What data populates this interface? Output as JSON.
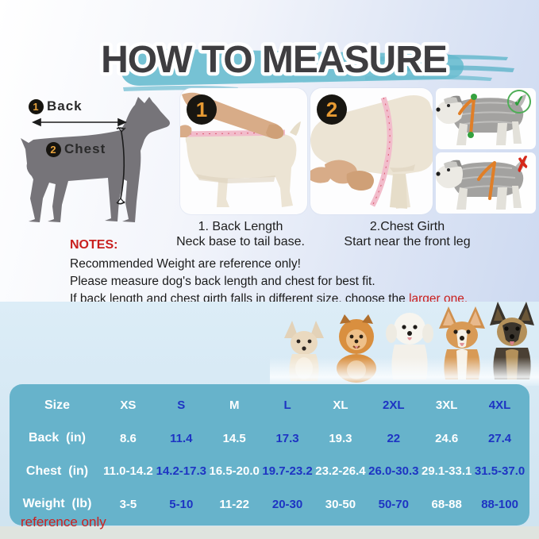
{
  "title": "HOW TO MEASURE",
  "diagram": {
    "back": {
      "num": "1",
      "label": "Back"
    },
    "chest": {
      "num": "2",
      "label": "Chest"
    }
  },
  "steps": [
    {
      "num": "1",
      "title": "1. Back Length",
      "subtitle": "Neck base to tail base."
    },
    {
      "num": "2",
      "title": "2.Chest Girth",
      "subtitle": "Start near the front leg"
    }
  ],
  "fit_examples": [
    {
      "result": "correct",
      "mark": "✓"
    },
    {
      "result": "wrong",
      "mark": "✗"
    }
  ],
  "notes": {
    "heading": "NOTES:",
    "line1": "Recommended Weight are reference only!",
    "line2": "Please measure dog's back length and chest for best fit.",
    "line3_prefix": "If back length and chest girth falls in different size, choose the ",
    "line3_highlight": "larger one."
  },
  "breeds": [
    "chihuahua",
    "pomeranian",
    "bichon-frise",
    "corgi",
    "german-shepherd"
  ],
  "chart_data": {
    "type": "table",
    "columns": [
      "Size",
      "XS",
      "S",
      "M",
      "L",
      "XL",
      "2XL",
      "3XL",
      "4XL"
    ],
    "rows": [
      {
        "label": "Size",
        "values": [
          "XS",
          "S",
          "M",
          "L",
          "XL",
          "2XL",
          "3XL",
          "4XL"
        ]
      },
      {
        "label": "Back  (in)",
        "values": [
          "8.6",
          "11.4",
          "14.5",
          "17.3",
          "19.3",
          "22",
          "24.6",
          "27.4"
        ]
      },
      {
        "label": "Chest  (in)",
        "values": [
          "11.0-14.2",
          "14.2-17.3",
          "16.5-20.0",
          "19.7-23.2",
          "23.2-26.4",
          "26.0-30.3",
          "29.1-33.1",
          "31.5-37.0"
        ]
      },
      {
        "label": "Weight  (lb)",
        "values": [
          "3-5",
          "5-10",
          "11-22",
          "20-30",
          "30-50",
          "50-70",
          "68-88",
          "88-100"
        ]
      }
    ],
    "footnote": "reference only"
  },
  "colors": {
    "accent_teal": "#76c2d4",
    "table_bg": "#67b3cb",
    "cell_blue": "#1e34c3",
    "note_red": "#c9201e",
    "check_green": "#2f9e3d",
    "cross_red": "#d6281a",
    "harness_orange": "#e07f28"
  }
}
